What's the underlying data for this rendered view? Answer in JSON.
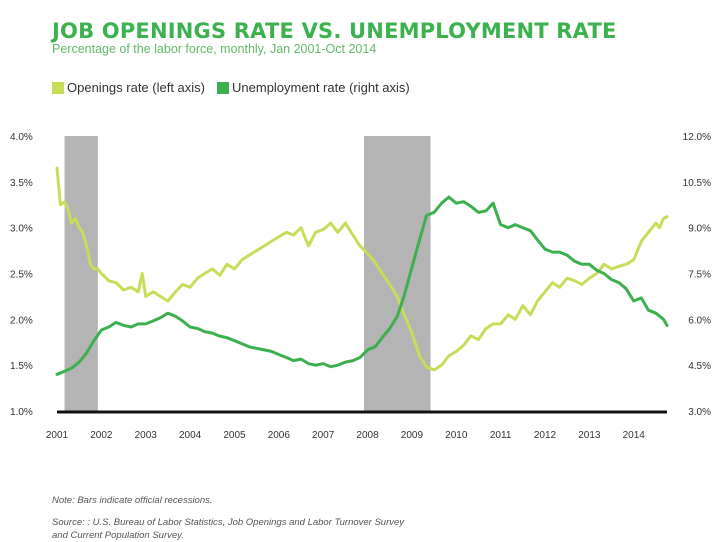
{
  "title": "JOB OPENINGS RATE VS. UNEMPLOYMENT RATE",
  "subtitle": "Percentage of the labor force, monthly, Jan 2001-Oct 2014",
  "notes": {
    "line1": "Note: Bars indicate official recessions.",
    "line2": "Source: : U.S. Bureau of Labor Statistics, Job Openings and Labor Turnover Survey",
    "line3": "and Current Population Survey."
  },
  "colors": {
    "openings": "#c8dc5a",
    "unemployment": "#3cb04e",
    "recession": "#b4b4b4",
    "axis": "#111111",
    "title": "#3cb24e"
  },
  "chart_data": {
    "type": "line",
    "title": "JOB OPENINGS RATE VS. UNEMPLOYMENT RATE",
    "x_ticks": [
      "2001",
      "2002",
      "2003",
      "2004",
      "2005",
      "2006",
      "2007",
      "2008",
      "2009",
      "2010",
      "2011",
      "2012",
      "2013",
      "2014"
    ],
    "x_range": [
      2001.0,
      2014.75
    ],
    "left_axis": {
      "ticks": [
        "1.0%",
        "1.5%",
        "2.0%",
        "2.5%",
        "3.0%",
        "3.5%",
        "4.0%"
      ],
      "range": [
        1.0,
        4.0
      ]
    },
    "right_axis": {
      "ticks": [
        "3.0%",
        "4.5%",
        "6.0%",
        "7.5%",
        "9.0%",
        "10.5%",
        "12.0%"
      ],
      "range": [
        3.0,
        12.0
      ]
    },
    "legend": [
      {
        "key": "openings",
        "label": "Openings rate (left axis)"
      },
      {
        "key": "unemployment",
        "label": "Unemployment rate (right axis)"
      }
    ],
    "recessions": [
      {
        "start": 2001.17,
        "end": 2001.92
      },
      {
        "start": 2007.92,
        "end": 2009.42
      }
    ],
    "series": [
      {
        "name": "Openings rate (left axis)",
        "axis": "left",
        "points": [
          [
            2001.0,
            3.65
          ],
          [
            2001.08,
            3.25
          ],
          [
            2001.17,
            3.28
          ],
          [
            2001.25,
            3.2
          ],
          [
            2001.33,
            3.05
          ],
          [
            2001.42,
            3.1
          ],
          [
            2001.5,
            3.0
          ],
          [
            2001.58,
            2.95
          ],
          [
            2001.67,
            2.8
          ],
          [
            2001.75,
            2.6
          ],
          [
            2001.83,
            2.55
          ],
          [
            2001.92,
            2.55
          ],
          [
            2002.0,
            2.5
          ],
          [
            2002.17,
            2.42
          ],
          [
            2002.33,
            2.4
          ],
          [
            2002.5,
            2.32
          ],
          [
            2002.67,
            2.35
          ],
          [
            2002.83,
            2.3
          ],
          [
            2002.92,
            2.5
          ],
          [
            2003.0,
            2.25
          ],
          [
            2003.17,
            2.3
          ],
          [
            2003.33,
            2.25
          ],
          [
            2003.5,
            2.2
          ],
          [
            2003.67,
            2.3
          ],
          [
            2003.83,
            2.38
          ],
          [
            2004.0,
            2.35
          ],
          [
            2004.17,
            2.45
          ],
          [
            2004.33,
            2.5
          ],
          [
            2004.5,
            2.55
          ],
          [
            2004.67,
            2.48
          ],
          [
            2004.83,
            2.6
          ],
          [
            2005.0,
            2.55
          ],
          [
            2005.17,
            2.65
          ],
          [
            2005.33,
            2.7
          ],
          [
            2005.5,
            2.75
          ],
          [
            2005.67,
            2.8
          ],
          [
            2005.83,
            2.85
          ],
          [
            2006.0,
            2.9
          ],
          [
            2006.17,
            2.95
          ],
          [
            2006.33,
            2.92
          ],
          [
            2006.5,
            3.0
          ],
          [
            2006.67,
            2.8
          ],
          [
            2006.83,
            2.95
          ],
          [
            2007.0,
            2.98
          ],
          [
            2007.17,
            3.05
          ],
          [
            2007.33,
            2.95
          ],
          [
            2007.5,
            3.05
          ],
          [
            2007.67,
            2.92
          ],
          [
            2007.83,
            2.8
          ],
          [
            2008.0,
            2.72
          ],
          [
            2008.17,
            2.62
          ],
          [
            2008.33,
            2.5
          ],
          [
            2008.5,
            2.38
          ],
          [
            2008.67,
            2.25
          ],
          [
            2008.83,
            2.05
          ],
          [
            2009.0,
            1.85
          ],
          [
            2009.17,
            1.6
          ],
          [
            2009.33,
            1.48
          ],
          [
            2009.5,
            1.45
          ],
          [
            2009.67,
            1.5
          ],
          [
            2009.83,
            1.6
          ],
          [
            2010.0,
            1.65
          ],
          [
            2010.17,
            1.72
          ],
          [
            2010.33,
            1.82
          ],
          [
            2010.5,
            1.78
          ],
          [
            2010.67,
            1.9
          ],
          [
            2010.83,
            1.95
          ],
          [
            2011.0,
            1.95
          ],
          [
            2011.17,
            2.05
          ],
          [
            2011.33,
            2.0
          ],
          [
            2011.5,
            2.15
          ],
          [
            2011.67,
            2.05
          ],
          [
            2011.83,
            2.2
          ],
          [
            2012.0,
            2.3
          ],
          [
            2012.17,
            2.4
          ],
          [
            2012.33,
            2.35
          ],
          [
            2012.5,
            2.45
          ],
          [
            2012.67,
            2.42
          ],
          [
            2012.83,
            2.38
          ],
          [
            2013.0,
            2.45
          ],
          [
            2013.17,
            2.5
          ],
          [
            2013.33,
            2.6
          ],
          [
            2013.5,
            2.55
          ],
          [
            2013.67,
            2.58
          ],
          [
            2013.83,
            2.6
          ],
          [
            2014.0,
            2.65
          ],
          [
            2014.17,
            2.85
          ],
          [
            2014.33,
            2.95
          ],
          [
            2014.5,
            3.05
          ],
          [
            2014.58,
            3.0
          ],
          [
            2014.67,
            3.1
          ],
          [
            2014.75,
            3.12
          ]
        ]
      },
      {
        "name": "Unemployment rate (right axis)",
        "axis": "right",
        "points": [
          [
            2001.0,
            4.2
          ],
          [
            2001.17,
            4.3
          ],
          [
            2001.33,
            4.4
          ],
          [
            2001.5,
            4.6
          ],
          [
            2001.67,
            4.9
          ],
          [
            2001.83,
            5.3
          ],
          [
            2002.0,
            5.65
          ],
          [
            2002.17,
            5.75
          ],
          [
            2002.33,
            5.9
          ],
          [
            2002.5,
            5.8
          ],
          [
            2002.67,
            5.75
          ],
          [
            2002.83,
            5.85
          ],
          [
            2003.0,
            5.85
          ],
          [
            2003.17,
            5.95
          ],
          [
            2003.33,
            6.05
          ],
          [
            2003.5,
            6.2
          ],
          [
            2003.67,
            6.1
          ],
          [
            2003.83,
            5.95
          ],
          [
            2004.0,
            5.75
          ],
          [
            2004.17,
            5.7
          ],
          [
            2004.33,
            5.6
          ],
          [
            2004.5,
            5.55
          ],
          [
            2004.67,
            5.45
          ],
          [
            2004.83,
            5.4
          ],
          [
            2005.0,
            5.3
          ],
          [
            2005.17,
            5.2
          ],
          [
            2005.33,
            5.1
          ],
          [
            2005.5,
            5.05
          ],
          [
            2005.67,
            5.0
          ],
          [
            2005.83,
            4.95
          ],
          [
            2006.0,
            4.85
          ],
          [
            2006.17,
            4.75
          ],
          [
            2006.33,
            4.65
          ],
          [
            2006.5,
            4.7
          ],
          [
            2006.67,
            4.55
          ],
          [
            2006.83,
            4.5
          ],
          [
            2007.0,
            4.55
          ],
          [
            2007.17,
            4.45
          ],
          [
            2007.33,
            4.5
          ],
          [
            2007.5,
            4.6
          ],
          [
            2007.67,
            4.65
          ],
          [
            2007.83,
            4.75
          ],
          [
            2008.0,
            5.0
          ],
          [
            2008.17,
            5.1
          ],
          [
            2008.33,
            5.4
          ],
          [
            2008.5,
            5.7
          ],
          [
            2008.67,
            6.1
          ],
          [
            2008.83,
            6.8
          ],
          [
            2009.0,
            7.7
          ],
          [
            2009.17,
            8.6
          ],
          [
            2009.33,
            9.4
          ],
          [
            2009.5,
            9.5
          ],
          [
            2009.67,
            9.8
          ],
          [
            2009.83,
            10.0
          ],
          [
            2010.0,
            9.8
          ],
          [
            2010.17,
            9.85
          ],
          [
            2010.33,
            9.7
          ],
          [
            2010.5,
            9.5
          ],
          [
            2010.67,
            9.55
          ],
          [
            2010.83,
            9.8
          ],
          [
            2011.0,
            9.1
          ],
          [
            2011.17,
            9.0
          ],
          [
            2011.33,
            9.1
          ],
          [
            2011.5,
            9.0
          ],
          [
            2011.67,
            8.9
          ],
          [
            2011.83,
            8.6
          ],
          [
            2012.0,
            8.3
          ],
          [
            2012.17,
            8.2
          ],
          [
            2012.33,
            8.2
          ],
          [
            2012.5,
            8.1
          ],
          [
            2012.67,
            7.9
          ],
          [
            2012.83,
            7.8
          ],
          [
            2013.0,
            7.8
          ],
          [
            2013.17,
            7.6
          ],
          [
            2013.33,
            7.5
          ],
          [
            2013.5,
            7.3
          ],
          [
            2013.67,
            7.2
          ],
          [
            2013.83,
            7.0
          ],
          [
            2014.0,
            6.6
          ],
          [
            2014.17,
            6.7
          ],
          [
            2014.33,
            6.3
          ],
          [
            2014.5,
            6.2
          ],
          [
            2014.67,
            6.0
          ],
          [
            2014.75,
            5.8
          ]
        ]
      }
    ]
  }
}
